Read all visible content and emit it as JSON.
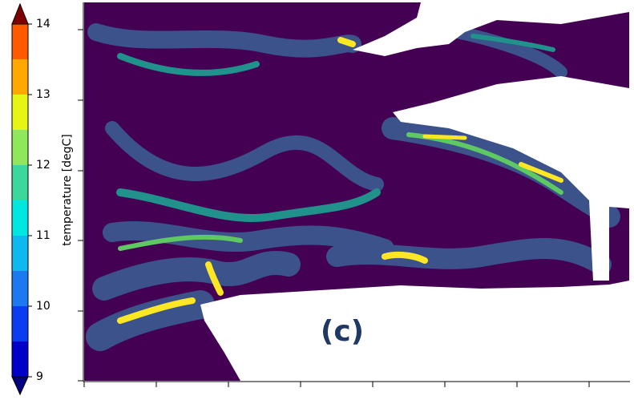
{
  "chart_data": {
    "type": "colorbar",
    "label": "temperature [degC]",
    "annotation": "(c)",
    "levels": [
      9,
      9.5,
      10,
      10.5,
      11,
      11.5,
      12,
      12.5,
      13,
      13.5,
      14
    ],
    "colors": [
      "#0000c8",
      "#0a3cf0",
      "#1e78f0",
      "#10b8f0",
      "#00e6e0",
      "#3cd89a",
      "#8ee85a",
      "#e6f514",
      "#ffa800",
      "#ff5a00"
    ],
    "extend_colors": [
      "#000080",
      "#800000"
    ],
    "ticks": [
      9,
      10,
      11,
      12,
      13,
      14
    ]
  }
}
